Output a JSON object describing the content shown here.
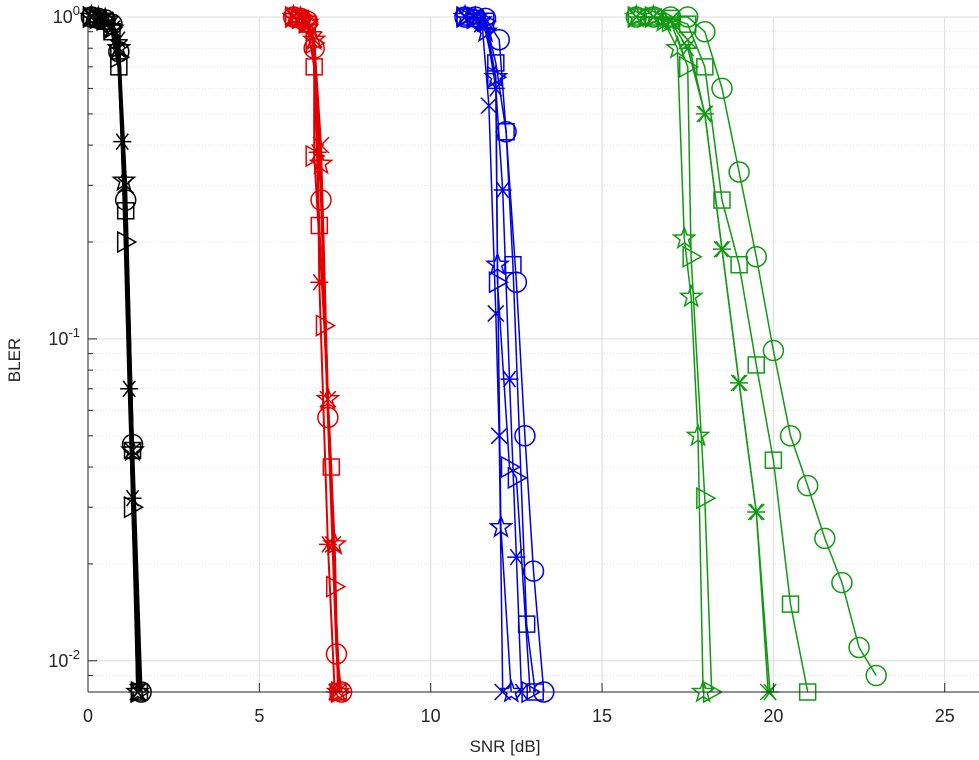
{
  "chart_data": {
    "type": "line",
    "title": "",
    "xlabel": "SNR [dB]",
    "ylabel": "BLER",
    "xlim": [
      0,
      26
    ],
    "ylim": [
      0.008,
      1.0
    ],
    "yscale": "log",
    "grid": true,
    "minor_grid": true,
    "legend": "none",
    "x_ticks": [
      0,
      5,
      10,
      15,
      20,
      25
    ],
    "x_tick_labels": [
      "0",
      "5",
      "10",
      "15",
      "20",
      "25"
    ],
    "y_ticks": [
      0.01,
      0.1,
      1
    ],
    "y_tick_labels": [
      {
        "base": "10",
        "exp": "-2"
      },
      {
        "base": "10",
        "exp": "-1"
      },
      {
        "base": "10",
        "exp": "0"
      }
    ],
    "groups": [
      {
        "color": "#000000",
        "line_width": 3,
        "series": [
          {
            "marker": "circle",
            "x": [
              0.1,
              0.3,
              0.5,
              0.7,
              0.9,
              1.1,
              1.3,
              1.55
            ],
            "y": [
              1.0,
              0.99,
              0.98,
              0.95,
              0.78,
              0.27,
              0.047,
              0.008
            ]
          },
          {
            "marker": "square",
            "x": [
              0.1,
              0.3,
              0.5,
              0.7,
              0.9,
              1.1,
              1.3,
              1.5
            ],
            "y": [
              1.0,
              0.99,
              0.97,
              0.9,
              0.7,
              0.25,
              0.045,
              0.008
            ]
          },
          {
            "marker": "triangle-right",
            "x": [
              0.1,
              0.3,
              0.5,
              0.7,
              0.9,
              1.1,
              1.3,
              1.5
            ],
            "y": [
              1.0,
              0.99,
              0.98,
              0.93,
              0.75,
              0.2,
              0.03,
              0.008
            ]
          },
          {
            "marker": "asterisk",
            "x": [
              0.1,
              0.3,
              0.5,
              0.7,
              0.9,
              1.0,
              1.2,
              1.3,
              1.45
            ],
            "y": [
              1.0,
              0.99,
              0.97,
              0.95,
              0.85,
              0.41,
              0.07,
              0.032,
              0.008
            ]
          },
          {
            "marker": "x",
            "x": [
              0.1,
              0.3,
              0.5,
              0.7,
              0.9,
              1.1,
              1.3,
              1.45
            ],
            "y": [
              1.0,
              0.99,
              0.98,
              0.92,
              0.8,
              0.3,
              0.045,
              0.008
            ]
          },
          {
            "marker": "star",
            "x": [
              0.1,
              0.3,
              0.5,
              0.7,
              0.9,
              1.05,
              1.3,
              1.45
            ],
            "y": [
              1.0,
              0.99,
              0.98,
              0.92,
              0.8,
              0.31,
              0.045,
              0.008
            ]
          }
        ]
      },
      {
        "color": "#e00000",
        "line_width": 2,
        "series": [
          {
            "marker": "circle",
            "x": [
              6.0,
              6.2,
              6.4,
              6.6,
              6.8,
              7.0,
              7.25,
              7.4
            ],
            "y": [
              1.0,
              0.99,
              0.97,
              0.8,
              0.27,
              0.057,
              0.0105,
              0.008
            ]
          },
          {
            "marker": "square",
            "x": [
              6.0,
              6.2,
              6.4,
              6.6,
              6.75,
              7.1,
              7.3
            ],
            "y": [
              1.0,
              0.99,
              0.95,
              0.7,
              0.225,
              0.04,
              0.008
            ]
          },
          {
            "marker": "triangle-right",
            "x": [
              6.0,
              6.2,
              6.4,
              6.6,
              6.6,
              6.9,
              7.2,
              7.35
            ],
            "y": [
              1.0,
              0.99,
              0.96,
              0.83,
              0.37,
              0.11,
              0.017,
              0.008
            ]
          },
          {
            "marker": "asterisk",
            "x": [
              6.0,
              6.2,
              6.4,
              6.55,
              6.7,
              6.75,
              7.0,
              7.2
            ],
            "y": [
              1.0,
              0.99,
              0.95,
              0.9,
              0.38,
              0.15,
              0.023,
              0.008
            ]
          },
          {
            "marker": "x",
            "x": [
              6.0,
              6.2,
              6.4,
              6.6,
              6.8,
              7.0,
              7.15,
              7.3
            ],
            "y": [
              1.0,
              0.99,
              0.96,
              0.85,
              0.4,
              0.065,
              0.023,
              0.008
            ]
          },
          {
            "marker": "star",
            "x": [
              6.0,
              6.2,
              6.4,
              6.6,
              6.8,
              7.0,
              7.2,
              7.3
            ],
            "y": [
              1.0,
              0.99,
              0.96,
              0.85,
              0.35,
              0.065,
              0.023,
              0.008
            ]
          }
        ]
      },
      {
        "color": "#0000e0",
        "line_width": 1.5,
        "series": [
          {
            "marker": "circle",
            "x": [
              11.0,
              11.3,
              11.6,
              12.0,
              12.2,
              12.5,
              12.75,
              13.0,
              13.3
            ],
            "y": [
              1.0,
              1.0,
              0.99,
              0.85,
              0.44,
              0.15,
              0.05,
              0.019,
              0.008
            ]
          },
          {
            "marker": "square",
            "x": [
              11.0,
              11.3,
              11.6,
              11.9,
              12.2,
              12.4,
              12.8,
              13.05
            ],
            "y": [
              1.0,
              0.99,
              0.97,
              0.72,
              0.44,
              0.17,
              0.013,
              0.008
            ]
          },
          {
            "marker": "triangle-right",
            "x": [
              11.0,
              11.3,
              11.6,
              11.9,
              11.95,
              12.3,
              12.5,
              12.9
            ],
            "y": [
              1.0,
              0.99,
              0.97,
              0.65,
              0.15,
              0.04,
              0.037,
              0.008
            ]
          },
          {
            "marker": "asterisk",
            "x": [
              11.0,
              11.3,
              11.6,
              11.9,
              12.1,
              12.3,
              12.5,
              12.65
            ],
            "y": [
              1.0,
              0.99,
              0.95,
              0.6,
              0.29,
              0.075,
              0.021,
              0.008
            ]
          },
          {
            "marker": "x",
            "x": [
              11.0,
              11.3,
              11.5,
              11.7,
              11.9,
              12.0,
              12.1
            ],
            "y": [
              1.0,
              0.99,
              0.95,
              0.53,
              0.12,
              0.05,
              0.008
            ]
          },
          {
            "marker": "star",
            "x": [
              11.0,
              11.3,
              11.6,
              11.9,
              11.95,
              12.05,
              12.35
            ],
            "y": [
              1.0,
              0.99,
              0.9,
              0.65,
              0.17,
              0.026,
              0.008
            ]
          }
        ]
      },
      {
        "color": "#119911",
        "line_width": 1.5,
        "series": [
          {
            "marker": "circle",
            "x": [
              16.0,
              16.5,
              17.0,
              17.5,
              18.0,
              18.5,
              19.0,
              19.5,
              20.0,
              20.5,
              21.0,
              21.5,
              22.0,
              22.5,
              23.0
            ],
            "y": [
              1.0,
              1.0,
              1.0,
              1.0,
              0.9,
              0.6,
              0.33,
              0.18,
              0.092,
              0.05,
              0.035,
              0.024,
              0.0175,
              0.011,
              0.009
            ]
          },
          {
            "marker": "square",
            "x": [
              16.0,
              16.5,
              17.0,
              17.5,
              18.0,
              18.5,
              19.0,
              19.5,
              20.0,
              20.5,
              21.0
            ],
            "y": [
              1.0,
              1.0,
              0.99,
              0.95,
              0.7,
              0.27,
              0.17,
              0.083,
              0.042,
              0.015,
              0.008
            ]
          },
          {
            "marker": "triangle-right",
            "x": [
              16.0,
              16.5,
              17.0,
              17.5,
              17.6,
              18.0,
              18.2
            ],
            "y": [
              1.0,
              1.0,
              0.97,
              0.7,
              0.18,
              0.032,
              0.008
            ]
          },
          {
            "marker": "asterisk",
            "x": [
              16.0,
              16.5,
              17.0,
              17.5,
              18.0,
              18.5,
              19.0,
              19.5,
              19.9
            ],
            "y": [
              1.0,
              1.0,
              0.97,
              0.8,
              0.5,
              0.19,
              0.073,
              0.029,
              0.008
            ]
          },
          {
            "marker": "x",
            "x": [
              16.0,
              16.5,
              17.0,
              17.5,
              18.0,
              18.5,
              19.0,
              19.5,
              19.85
            ],
            "y": [
              1.0,
              1.0,
              0.98,
              0.85,
              0.5,
              0.19,
              0.073,
              0.029,
              0.008
            ]
          },
          {
            "marker": "star",
            "x": [
              16.0,
              16.5,
              16.8,
              17.2,
              17.4,
              17.6,
              17.8,
              17.95
            ],
            "y": [
              1.0,
              1.0,
              0.97,
              0.8,
              0.205,
              0.135,
              0.05,
              0.008
            ]
          }
        ]
      }
    ]
  }
}
